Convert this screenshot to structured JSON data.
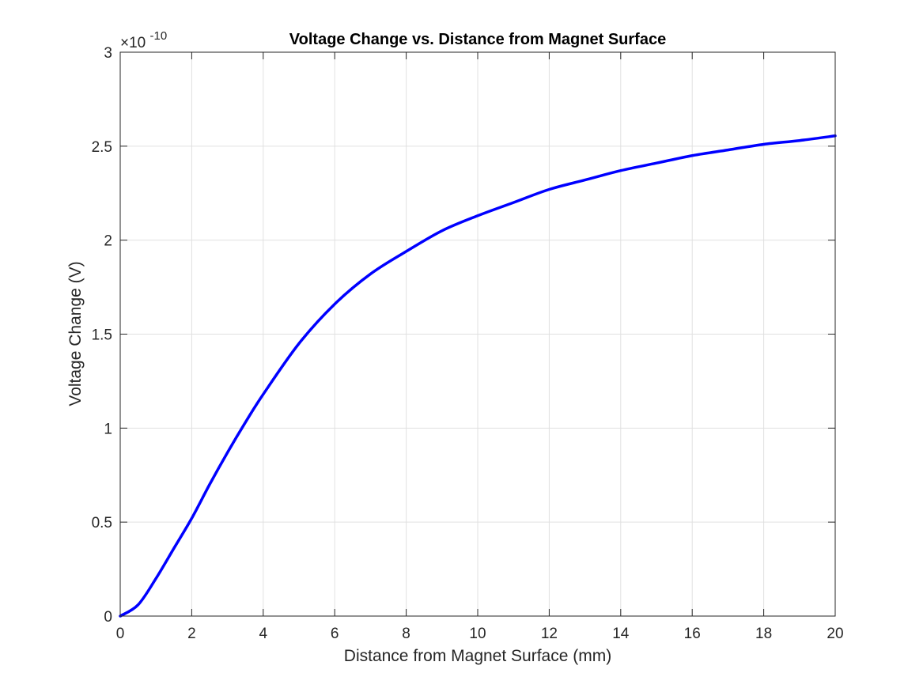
{
  "chart_data": {
    "type": "line",
    "title": "Voltage Change vs. Distance from Magnet Surface",
    "xlabel": "Distance from Magnet Surface (mm)",
    "ylabel": "Voltage Change (V)",
    "y_exponent_base": "×10",
    "y_exponent_power": "-10",
    "xlim": [
      0,
      20
    ],
    "ylim": [
      0,
      3
    ],
    "x_ticks": [
      0,
      2,
      4,
      6,
      8,
      10,
      12,
      14,
      16,
      18,
      20
    ],
    "x_tick_labels": [
      "0",
      "2",
      "4",
      "6",
      "8",
      "10",
      "12",
      "14",
      "16",
      "18",
      "20"
    ],
    "y_ticks": [
      0,
      0.5,
      1,
      1.5,
      2,
      2.5,
      3
    ],
    "y_tick_labels": [
      "0",
      "0.5",
      "1",
      "1.5",
      "2",
      "2.5",
      "3"
    ],
    "grid": true,
    "line_color": "#0000ff",
    "series": [
      {
        "x": [
          0,
          0.5,
          1,
          1.5,
          2,
          2.5,
          3,
          3.5,
          4,
          5,
          6,
          7,
          8,
          9,
          10,
          11,
          12,
          13,
          14,
          15,
          16,
          17,
          18,
          19,
          20
        ],
        "y": [
          0,
          0.06,
          0.2,
          0.36,
          0.52,
          0.7,
          0.87,
          1.03,
          1.18,
          1.45,
          1.66,
          1.82,
          1.94,
          2.05,
          2.13,
          2.2,
          2.27,
          2.32,
          2.37,
          2.41,
          2.45,
          2.48,
          2.51,
          2.53,
          2.555
        ]
      }
    ]
  }
}
